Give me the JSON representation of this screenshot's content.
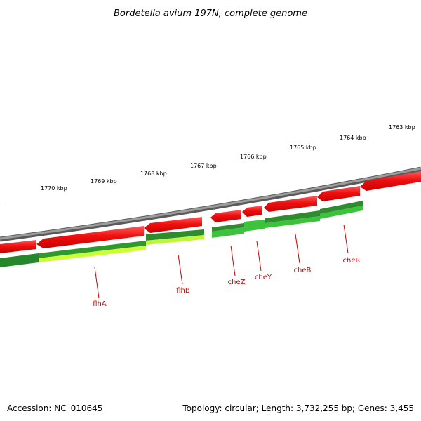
{
  "title": "Bordetella avium 197N, complete genome",
  "footer": {
    "accession": "Accession: NC_010645",
    "topology": "Topology: circular; Length: 3,732,255 bp; Genes: 3,455"
  },
  "colors": {
    "backbone": "#8a8a8a",
    "gene_red": "#ee1c1c",
    "gene_red_light": "#ff6b6b",
    "gene_green_dark": "#2e8b2e",
    "gene_green": "#3cc23c",
    "gene_lime": "#ccff33",
    "tick": "#2e7d1e",
    "label_line": "#cc0000"
  },
  "scale_labels": [
    "1770 kbp",
    "1769 kbp",
    "1768 kbp",
    "1767 kbp",
    "1766 kbp",
    "1765 kbp",
    "1764 kbp",
    "1763 kbp"
  ],
  "gene_labels": [
    "flhA",
    "flhB",
    "cheZ",
    "cheY",
    "cheB",
    "cheR"
  ]
}
